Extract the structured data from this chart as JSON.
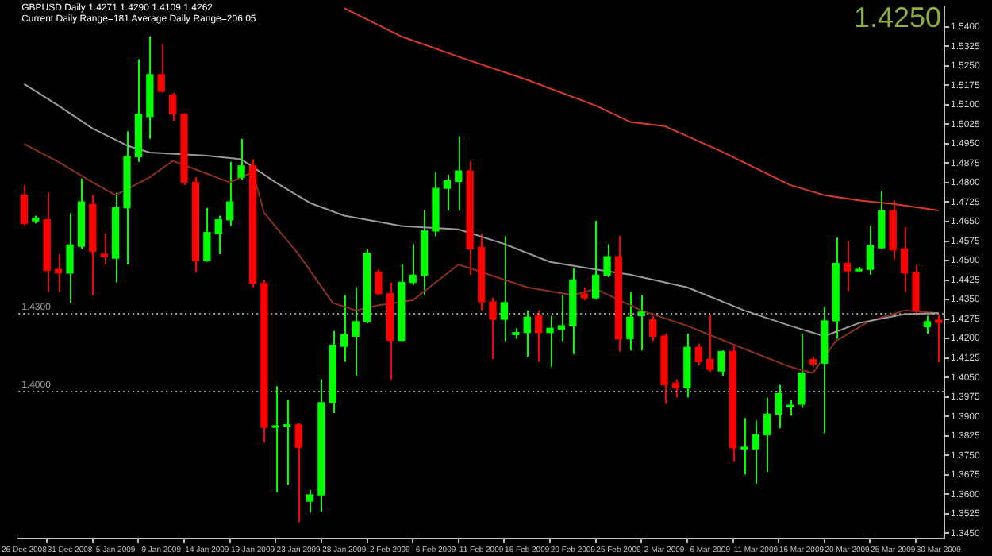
{
  "chart_data": {
    "type": "candlestick",
    "title": "GBPUSD,Daily 1.4271 1.4290 1.4109 1.4262",
    "subtitle": "Current Daily Range=181 Average Daily Range=206.05",
    "annotations": [
      "1.4250"
    ],
    "categories": [
      "26 Dec 2008",
      null,
      null,
      null,
      "31 Dec 2008",
      null,
      null,
      null,
      "5 Jan 2009",
      null,
      null,
      null,
      "9 Jan 2009",
      null,
      null,
      null,
      "14 Jan 2009",
      null,
      null,
      null,
      "19 Jan 2009",
      null,
      null,
      null,
      "23 Jan 2009",
      null,
      null,
      null,
      "28 Jan 2009",
      null,
      null,
      null,
      "2 Feb 2009",
      null,
      null,
      null,
      "6 Feb 2009",
      null,
      null,
      null,
      "11 Feb 2009",
      null,
      null,
      null,
      "16 Feb 2009",
      null,
      null,
      null,
      "20 Feb 2009",
      null,
      null,
      null,
      "25 Feb 2009",
      null,
      null,
      null,
      "2 Mar 2009",
      null,
      null,
      null,
      "6 Mar 2009",
      null,
      null,
      null,
      "11 Mar 2009",
      null,
      null,
      null,
      "16 Mar 2009",
      null,
      null,
      null,
      "20 Mar 2009",
      null,
      null,
      null,
      "25 Mar 2009",
      null,
      null,
      null,
      "30 Mar 2009"
    ],
    "ohlc": [
      [
        1.4752,
        1.4791,
        1.4633,
        1.4643
      ],
      [
        1.4653,
        1.4673,
        1.4643,
        1.4663
      ],
      [
        1.4657,
        1.4762,
        1.4377,
        1.4462
      ],
      [
        1.4466,
        1.4525,
        1.4377,
        1.4452
      ],
      [
        1.4452,
        1.4683,
        1.4338,
        1.456
      ],
      [
        1.4555,
        1.4815,
        1.4545,
        1.4726
      ],
      [
        1.4716,
        1.4752,
        1.4367,
        1.4535
      ],
      [
        1.4525,
        1.4604,
        1.4485,
        1.4515
      ],
      [
        1.4509,
        1.4762,
        1.4416,
        1.4703
      ],
      [
        1.4703,
        1.4998,
        1.4485,
        1.49
      ],
      [
        1.49,
        1.5275,
        1.488,
        1.5062
      ],
      [
        1.5054,
        1.5363,
        1.4969,
        1.5216
      ],
      [
        1.5216,
        1.5334,
        1.5146,
        1.5152
      ],
      [
        1.5137,
        1.5146,
        1.5038,
        1.5064
      ],
      [
        1.5064,
        1.5068,
        1.4791,
        1.4801
      ],
      [
        1.4801,
        1.4821,
        1.4456,
        1.4501
      ],
      [
        1.4501,
        1.4703,
        1.4495,
        1.4608
      ],
      [
        1.4604,
        1.4673,
        1.4525,
        1.4657
      ],
      [
        1.4657,
        1.488,
        1.4633,
        1.4726
      ],
      [
        1.4821,
        1.4969,
        1.4811,
        1.4864
      ],
      [
        1.4864,
        1.489,
        1.4397,
        1.4412
      ],
      [
        1.4412,
        1.4426,
        1.3799,
        1.3858
      ],
      [
        1.3858,
        1.4016,
        1.3608,
        1.3864
      ],
      [
        1.3862,
        1.3963,
        1.3637,
        1.3868
      ],
      [
        1.3868,
        1.3874,
        1.3493,
        1.3781
      ],
      [
        1.3574,
        1.3617,
        1.3529,
        1.3598
      ],
      [
        1.3598,
        1.4042,
        1.3533,
        1.3953
      ],
      [
        1.3953,
        1.4229,
        1.3913,
        1.4174
      ],
      [
        1.417,
        1.4367,
        1.4111,
        1.4215
      ],
      [
        1.4209,
        1.4397,
        1.4055,
        1.4265
      ],
      [
        1.4265,
        1.4545,
        1.4259,
        1.4529
      ],
      [
        1.4456,
        1.4466,
        1.4367,
        1.4373
      ],
      [
        1.4373,
        1.4416,
        1.4042,
        1.4193
      ],
      [
        1.4193,
        1.4485,
        1.419,
        1.4416
      ],
      [
        1.4416,
        1.4564,
        1.4407,
        1.4444
      ],
      [
        1.4444,
        1.4693,
        1.4367,
        1.4614
      ],
      [
        1.4614,
        1.4841,
        1.4594,
        1.4778
      ],
      [
        1.4778,
        1.4831,
        1.4693,
        1.4807
      ],
      [
        1.4805,
        1.4979,
        1.4693,
        1.4845
      ],
      [
        1.4845,
        1.4884,
        1.4446,
        1.4545
      ],
      [
        1.4551,
        1.4604,
        1.4308,
        1.4341
      ],
      [
        1.4341,
        1.4357,
        1.412,
        1.4274
      ],
      [
        1.4274,
        1.4594,
        1.419,
        1.4338
      ],
      [
        1.4215,
        1.4239,
        1.4199,
        1.4223
      ],
      [
        1.4223,
        1.4308,
        1.413,
        1.4282
      ],
      [
        1.4288,
        1.4308,
        1.4111,
        1.4223
      ],
      [
        1.4223,
        1.4288,
        1.4091,
        1.4239
      ],
      [
        1.4235,
        1.4367,
        1.419,
        1.4249
      ],
      [
        1.4249,
        1.447,
        1.414,
        1.4426
      ],
      [
        1.4371,
        1.4397,
        1.4347,
        1.4357
      ],
      [
        1.4357,
        1.4653,
        1.4351,
        1.4444
      ],
      [
        1.4444,
        1.4564,
        1.4436,
        1.4515
      ],
      [
        1.4515,
        1.4594,
        1.415,
        1.4199
      ],
      [
        1.4199,
        1.4377,
        1.4154,
        1.4282
      ],
      [
        1.4288,
        1.4367,
        1.4154,
        1.4302
      ],
      [
        1.4272,
        1.4288,
        1.419,
        1.4209
      ],
      [
        1.4209,
        1.4219,
        1.3949,
        1.4022
      ],
      [
        1.4028,
        1.4042,
        1.3973,
        1.4012
      ],
      [
        1.4012,
        1.4219,
        1.3973,
        1.4166
      ],
      [
        1.4166,
        1.418,
        1.4097,
        1.4111
      ],
      [
        1.412,
        1.4292,
        1.4071,
        1.4081
      ],
      [
        1.4075,
        1.4154,
        1.4055,
        1.415
      ],
      [
        1.415,
        1.417,
        1.3726,
        1.3779
      ],
      [
        1.3775,
        1.3894,
        1.3677,
        1.3779
      ],
      [
        1.3775,
        1.3884,
        1.3641,
        1.3829
      ],
      [
        1.3829,
        1.3973,
        1.3686,
        1.3909
      ],
      [
        1.3909,
        1.4022,
        1.3854,
        1.3988
      ],
      [
        1.3937,
        1.3963,
        1.3903,
        1.3943
      ],
      [
        1.3947,
        1.4219,
        1.3933,
        1.4067
      ],
      [
        1.4119,
        1.413,
        1.4091,
        1.4101
      ],
      [
        1.4105,
        1.4322,
        1.3834,
        1.4268
      ],
      [
        1.4268,
        1.4588,
        1.4199,
        1.4489
      ],
      [
        1.4489,
        1.4574,
        1.4383,
        1.446
      ],
      [
        1.446,
        1.4476,
        1.4456,
        1.4466
      ],
      [
        1.4466,
        1.4633,
        1.4446,
        1.4558
      ],
      [
        1.4549,
        1.4768,
        1.4545,
        1.4693
      ],
      [
        1.4693,
        1.4732,
        1.4505,
        1.4541
      ],
      [
        1.4545,
        1.4628,
        1.4377,
        1.4452
      ],
      [
        1.4454,
        1.4485,
        1.4288,
        1.4308
      ],
      [
        1.4245,
        1.4288,
        1.4219,
        1.4265
      ],
      [
        1.4271,
        1.429,
        1.4109,
        1.4262
      ]
    ],
    "colors": [
      "#ff0000",
      "#00ff00",
      "#ff0000",
      "#ff0000",
      "#00ff00",
      "#00ff00",
      "#ff0000",
      "#ff0000",
      "#00ff00",
      "#00ff00",
      "#00ff00",
      "#00ff00",
      "#ff0000",
      "#ff0000",
      "#ff0000",
      "#ff0000",
      "#00ff00",
      "#00ff00",
      "#00ff00",
      "#00ff00",
      "#ff0000",
      "#ff0000",
      "#00ff00",
      "#00ff00",
      "#ff0000",
      "#00ff00",
      "#00ff00",
      "#00ff00",
      "#00ff00",
      "#00ff00",
      "#00ff00",
      "#ff0000",
      "#ff0000",
      "#00ff00",
      "#00ff00",
      "#00ff00",
      "#00ff00",
      "#00ff00",
      "#00ff00",
      "#ff0000",
      "#ff0000",
      "#ff0000",
      "#00ff00",
      "#00ff00",
      "#00ff00",
      "#ff0000",
      "#00ff00",
      "#00ff00",
      "#00ff00",
      "#ff0000",
      "#00ff00",
      "#00ff00",
      "#ff0000",
      "#00ff00",
      "#00ff00",
      "#ff0000",
      "#ff0000",
      "#ff0000",
      "#00ff00",
      "#ff0000",
      "#ff0000",
      "#00ff00",
      "#ff0000",
      "#00ff00",
      "#00ff00",
      "#00ff00",
      "#00ff00",
      "#00ff00",
      "#00ff00",
      "#ff0000",
      "#00ff00",
      "#00ff00",
      "#ff0000",
      "#00ff00",
      "#00ff00",
      "#00ff00",
      "#ff0000",
      "#ff0000",
      "#ff0000",
      "#00ff00",
      "#ff0000"
    ],
    "series": [
      {
        "type": "line",
        "color": "#d8392b",
        "values": [
          null,
          null,
          null,
          null,
          null,
          null,
          null,
          null,
          null,
          null,
          null,
          null,
          null,
          null,
          null,
          null,
          null,
          null,
          null,
          null,
          null,
          null,
          null,
          null,
          null,
          null,
          null,
          null,
          1.5472,
          null,
          null,
          null,
          null,
          1.5363,
          null,
          null,
          null,
          null,
          1.5285,
          null,
          null,
          null,
          null,
          null,
          1.5196,
          null,
          null,
          null,
          null,
          null,
          1.5097,
          null,
          null,
          1.5034,
          null,
          null,
          1.5018,
          null,
          null,
          null,
          null,
          1.492,
          null,
          null,
          null,
          null,
          null,
          1.4791,
          null,
          null,
          1.4752,
          null,
          null,
          1.4732,
          null,
          null,
          1.4718,
          null,
          null,
          null,
          1.4693
        ]
      },
      {
        "type": "line",
        "color": "#9a9a9a",
        "values": [
          1.518,
          null,
          null,
          1.5097,
          null,
          null,
          1.5008,
          null,
          null,
          1.4943,
          null,
          1.4916,
          null,
          null,
          null,
          null,
          1.4904,
          null,
          null,
          1.489,
          null,
          null,
          1.4801,
          null,
          null,
          1.4722,
          null,
          null,
          1.4673,
          null,
          null,
          null,
          null,
          1.4633,
          null,
          null,
          null,
          null,
          1.462,
          null,
          null,
          null,
          1.4564,
          null,
          null,
          null,
          1.4495,
          null,
          null,
          null,
          1.4466,
          null,
          null,
          1.4446,
          null,
          null,
          null,
          null,
          1.4397,
          null,
          null,
          null,
          null,
          1.4308,
          null,
          null,
          null,
          1.4249,
          null,
          null,
          1.4209,
          null,
          null,
          1.4259,
          null,
          null,
          null,
          1.4294,
          null,
          null,
          1.4298
        ]
      },
      {
        "type": "line",
        "color": "#8b2f22",
        "values": [
          1.4949,
          null,
          null,
          1.488,
          null,
          null,
          1.4801,
          null,
          1.4752,
          null,
          null,
          1.4821,
          null,
          1.4884,
          null,
          1.4851,
          null,
          null,
          1.4801,
          null,
          1.4841,
          1.4683,
          null,
          null,
          1.4525,
          null,
          null,
          1.4337,
          null,
          1.4308,
          null,
          1.4328,
          null,
          null,
          1.4347,
          null,
          null,
          null,
          1.4485,
          null,
          1.4456,
          null,
          null,
          null,
          1.4397,
          null,
          null,
          null,
          1.4367,
          null,
          1.4391,
          null,
          null,
          null,
          1.4308,
          null,
          null,
          null,
          1.4249,
          null,
          null,
          null,
          null,
          1.416,
          null,
          null,
          null,
          1.4091,
          null,
          1.4067,
          null,
          1.419,
          null,
          null,
          1.4268,
          null,
          null,
          1.4308,
          null,
          null,
          1.4298
        ]
      }
    ],
    "ylim": [
      1.343,
      1.5475
    ],
    "yticks": [
      {
        "value": 1.345,
        "label": "1.3450"
      },
      {
        "value": 1.3525,
        "label": "1.3525"
      },
      {
        "value": 1.36,
        "label": "1.3600"
      },
      {
        "value": 1.3675,
        "label": "1.3675"
      },
      {
        "value": 1.375,
        "label": "1.3750"
      },
      {
        "value": 1.3825,
        "label": "1.3825"
      },
      {
        "value": 1.39,
        "label": "1.3900"
      },
      {
        "value": 1.3975,
        "label": "1.3975"
      },
      {
        "value": 1.405,
        "label": "1.4050"
      },
      {
        "value": 1.4125,
        "label": "1.4125"
      },
      {
        "value": 1.42,
        "label": "1.4200"
      },
      {
        "value": 1.4275,
        "label": "1.4275"
      },
      {
        "value": 1.435,
        "label": "1.4350"
      },
      {
        "value": 1.4425,
        "label": "1.4425"
      },
      {
        "value": 1.45,
        "label": "1.4500"
      },
      {
        "value": 1.4575,
        "label": "1.4575"
      },
      {
        "value": 1.465,
        "label": "1.4650"
      },
      {
        "value": 1.4725,
        "label": "1.4725"
      },
      {
        "value": 1.48,
        "label": "1.4800"
      },
      {
        "value": 1.4875,
        "label": "1.4875"
      },
      {
        "value": 1.495,
        "label": "1.4950"
      },
      {
        "value": 1.5025,
        "label": "1.5025"
      },
      {
        "value": 1.51,
        "label": "1.5100"
      },
      {
        "value": 1.5175,
        "label": "1.5175"
      },
      {
        "value": 1.525,
        "label": "1.5250"
      },
      {
        "value": 1.5325,
        "label": "1.5325"
      },
      {
        "value": 1.54,
        "label": "1.5400"
      }
    ],
    "ref_lines": [
      {
        "axis": "y",
        "value": 1.43,
        "label": "1.4300",
        "color": "#a0a0a0",
        "line_style": "dotted"
      },
      {
        "axis": "y",
        "value": 1.4,
        "label": "1.4000",
        "color": "#a0a0a0",
        "line_style": "dotted"
      }
    ],
    "grid": false,
    "legend": false
  }
}
